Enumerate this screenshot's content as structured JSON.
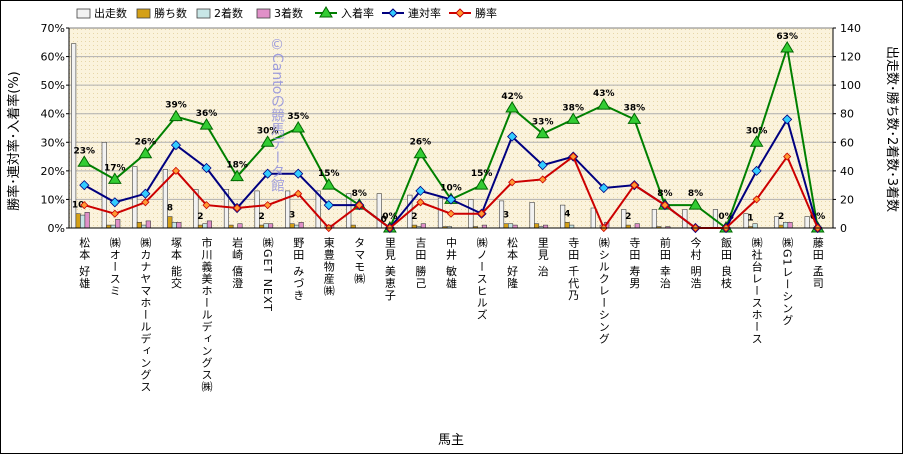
{
  "chart_data": {
    "type": "bar+line",
    "xlabel": "馬主",
    "ylabel_left": "勝率･連対率･入着率(%)",
    "ylabel_right": "出走数･勝ち数･2着数･3着数",
    "left_ticks": [
      "0%",
      "10%",
      "20%",
      "30%",
      "40%",
      "50%",
      "60%",
      "70%"
    ],
    "right_ticks": [
      "0",
      "20",
      "40",
      "60",
      "80",
      "100",
      "120",
      "140"
    ],
    "ylim_left": [
      0,
      70
    ],
    "ylim_right": [
      0,
      140
    ],
    "legend_position": "top",
    "watermark": "©Cantoの競馬データ館",
    "categories": [
      "松本 好雄",
      "㈱オースミ",
      "㈱カナヤマホールディングス",
      "塚本 能交",
      "市川義美ホールディングス㈱",
      "岩崎 僖澄",
      "㈱GET NEXT",
      "野田 みづき",
      "東豊物産㈱",
      "タマモ㈱",
      "里見 美恵子",
      "吉田 勝己",
      "中井 敏雄",
      "㈱ノースヒルズ",
      "松本 好隆",
      "里見 治",
      "寺田 千代乃",
      "㈱シルクレーシング",
      "寺田 寿男",
      "前田 幸治",
      "今村 明浩",
      "飯田 良枝",
      "㈱社台レースホース",
      "㈱G1レーシング",
      "藤田 孟司"
    ],
    "series": [
      {
        "name": "出走数",
        "axis": "right",
        "kind": "bar",
        "color": "#f2f2f2",
        "values": [
          129,
          60,
          43,
          41,
          27,
          27,
          26,
          26,
          26,
          24,
          24,
          23,
          21,
          20,
          19,
          18,
          16,
          14,
          13,
          13,
          13,
          13,
          10,
          8,
          8
        ]
      },
      {
        "name": "勝ち数",
        "axis": "right",
        "kind": "bar",
        "color": "#d4a017",
        "values": [
          10,
          2,
          4,
          8,
          2,
          2,
          2,
          3,
          0,
          2,
          0,
          2,
          1,
          1,
          3,
          3,
          4,
          0,
          2,
          1,
          0,
          0,
          1,
          2,
          0
        ]
      },
      {
        "name": "2着数",
        "axis": "right",
        "kind": "bar",
        "color": "#c8e6e6",
        "values": [
          9,
          2,
          2,
          4,
          3,
          0,
          3,
          2,
          2,
          0,
          0,
          1,
          1,
          0,
          3,
          1,
          2,
          2,
          0,
          0,
          0,
          0,
          3,
          4,
          0
        ]
      },
      {
        "name": "3着数",
        "axis": "right",
        "kind": "bar",
        "color": "#e090c8",
        "values": [
          11,
          6,
          5,
          4,
          5,
          3,
          3,
          4,
          2,
          0,
          0,
          3,
          0,
          2,
          2,
          2,
          0,
          4,
          3,
          1,
          1,
          0,
          0,
          4,
          0
        ]
      },
      {
        "name": "入着率",
        "axis": "left",
        "kind": "line",
        "color": "#008000",
        "marker": "triangle",
        "values": [
          23,
          17,
          26,
          39,
          36,
          18,
          30,
          35,
          15,
          8,
          0,
          26,
          10,
          15,
          42,
          33,
          38,
          43,
          38,
          8,
          8,
          0,
          30,
          63,
          0
        ],
        "labels": [
          "23%",
          "17%",
          "26%",
          "39%",
          "36%",
          "18%",
          "30%",
          "35%",
          "15%",
          "8%",
          "0%",
          "26%",
          "10%",
          "15%",
          "42%",
          "33%",
          "38%",
          "43%",
          "38%",
          "8%",
          "8%",
          "0%",
          "30%",
          "63%",
          "0%"
        ]
      },
      {
        "name": "連対率",
        "axis": "left",
        "kind": "line",
        "color": "#000080",
        "marker": "diamond",
        "marker_color": "#33ccff",
        "values": [
          15,
          9,
          12,
          29,
          21,
          7,
          19,
          19,
          8,
          8,
          0,
          13,
          10,
          5,
          32,
          22,
          25,
          14,
          15,
          8,
          0,
          0,
          20,
          38,
          0
        ]
      },
      {
        "name": "勝率",
        "axis": "left",
        "kind": "line",
        "color": "#cc0000",
        "marker": "diamond",
        "marker_color": "#ff9933",
        "values": [
          8,
          5,
          9,
          20,
          8,
          7,
          8,
          12,
          0,
          8,
          0,
          9,
          5,
          5,
          16,
          17,
          25,
          0,
          15,
          8,
          0,
          0,
          10,
          25,
          0
        ]
      }
    ],
    "bar_labels": [
      "10",
      "",
      "",
      "8",
      "2",
      "",
      "2",
      "3",
      "",
      "",
      "0",
      "2",
      "",
      "",
      "3",
      "",
      "4",
      "",
      "2",
      "",
      "",
      "",
      "1",
      "2",
      ""
    ]
  }
}
